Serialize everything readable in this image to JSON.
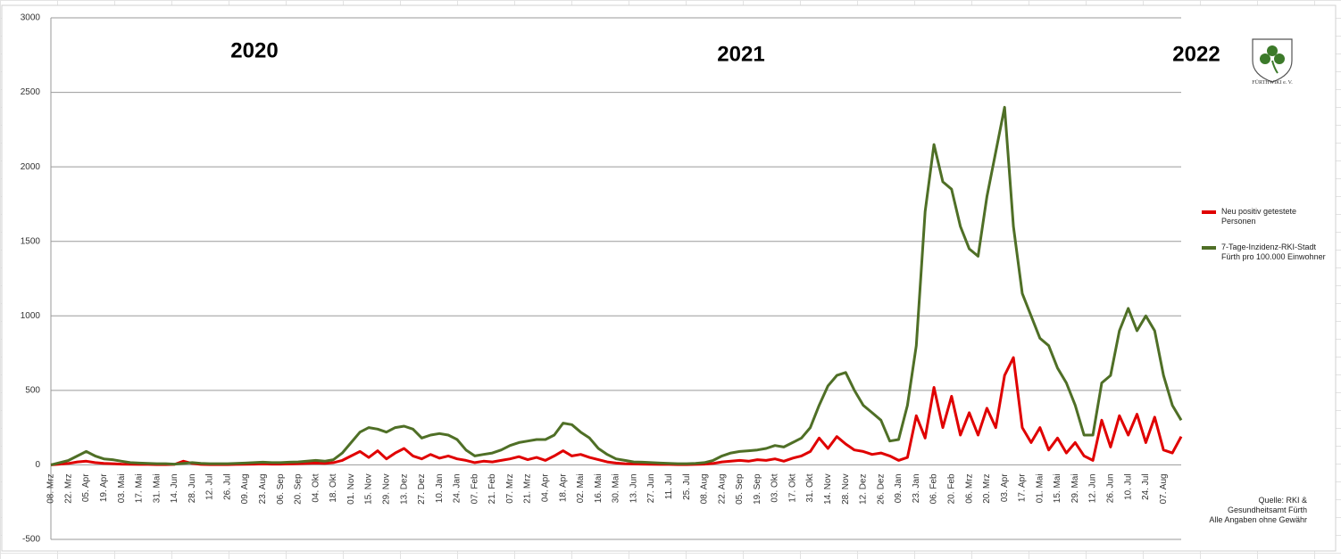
{
  "chart_data": {
    "type": "line",
    "annotations": [
      "2020",
      "2021",
      "2022"
    ],
    "logo_text": "FÜRTHWIKI e. V.",
    "source": [
      "Quelle: RKI &",
      "Gesundheitsamt Fürth",
      "Alle Angaben ohne Gewähr"
    ],
    "categories": [
      "08. Mrz",
      null,
      "22. Mrz",
      null,
      "05. Apr",
      null,
      "19. Apr",
      null,
      "03. Mai",
      null,
      "17. Mai",
      null,
      "31. Mai",
      null,
      "14. Jun",
      null,
      "28. Jun",
      null,
      "12. Jul",
      null,
      "26. Jul",
      null,
      "09. Aug",
      null,
      "23. Aug",
      null,
      "06. Sep",
      null,
      "20. Sep",
      null,
      "04. Okt",
      null,
      "18. Okt",
      null,
      "01. Nov",
      null,
      "15. Nov",
      null,
      "29. Nov",
      null,
      "13. Dez",
      null,
      "27. Dez",
      null,
      "10. Jan",
      null,
      "24. Jan",
      null,
      "07. Feb",
      null,
      "21. Feb",
      null,
      "07. Mrz",
      null,
      "21. Mrz",
      null,
      "04. Apr",
      null,
      "18. Apr",
      null,
      "02. Mai",
      null,
      "16. Mai",
      null,
      "30. Mai",
      null,
      "13. Jun",
      null,
      "27. Jun",
      null,
      "11. Jul",
      null,
      "25. Jul",
      null,
      "08. Aug",
      null,
      "22. Aug",
      null,
      "05. Sep",
      null,
      "19. Sep",
      null,
      "03. Okt",
      null,
      "17. Okt",
      null,
      "31. Okt",
      null,
      "14. Nov",
      null,
      "28. Nov",
      null,
      "12. Dez",
      null,
      "26. Dez",
      null,
      "09. Jan",
      null,
      "23. Jan",
      null,
      "06. Feb",
      null,
      "20. Feb",
      null,
      "06. Mrz",
      null,
      "20. Mrz",
      null,
      "03. Apr",
      null,
      "17. Apr",
      null,
      "01. Mai",
      null,
      "15. Mai",
      null,
      "29. Mai",
      null,
      "12. Jun",
      null,
      "26. Jun",
      null,
      "10. Jul",
      null,
      "24. Jul",
      null,
      "07. Aug",
      null,
      null
    ],
    "series": [
      {
        "name": "Neu positiv getestete Personen",
        "color": "#e00000",
        "values": [
          0,
          5,
          10,
          20,
          25,
          15,
          10,
          8,
          5,
          4,
          3,
          3,
          2,
          2,
          3,
          25,
          10,
          3,
          2,
          2,
          2,
          3,
          4,
          5,
          6,
          5,
          5,
          6,
          8,
          10,
          12,
          10,
          15,
          30,
          60,
          90,
          50,
          95,
          40,
          80,
          110,
          60,
          40,
          70,
          45,
          60,
          40,
          30,
          15,
          25,
          20,
          30,
          40,
          55,
          35,
          50,
          30,
          60,
          95,
          60,
          70,
          50,
          35,
          20,
          12,
          8,
          6,
          5,
          4,
          3,
          3,
          2,
          2,
          3,
          5,
          10,
          20,
          25,
          30,
          25,
          35,
          30,
          40,
          25,
          45,
          60,
          90,
          180,
          110,
          190,
          140,
          100,
          90,
          70,
          80,
          60,
          30,
          50,
          330,
          180,
          520,
          250,
          460,
          200,
          350,
          200,
          380,
          250,
          600,
          720,
          250,
          150,
          250,
          100,
          180,
          80,
          150,
          60,
          30,
          300,
          120,
          330,
          200,
          340,
          150,
          320,
          100,
          80,
          190
        ]
      },
      {
        "name": "7-Tage-Inzidenz-RKI-Stadt Fürth pro 100.000 Einwohner",
        "color": "#4f6f26",
        "values": [
          0,
          15,
          30,
          60,
          90,
          60,
          40,
          35,
          25,
          15,
          12,
          10,
          8,
          8,
          5,
          10,
          15,
          10,
          8,
          8,
          8,
          10,
          12,
          15,
          18,
          15,
          15,
          18,
          20,
          25,
          30,
          25,
          35,
          80,
          150,
          220,
          250,
          240,
          220,
          250,
          260,
          240,
          180,
          200,
          210,
          200,
          170,
          100,
          60,
          70,
          80,
          100,
          130,
          150,
          160,
          170,
          170,
          200,
          280,
          270,
          220,
          180,
          110,
          70,
          40,
          30,
          20,
          18,
          15,
          12,
          10,
          8,
          8,
          10,
          15,
          30,
          60,
          80,
          90,
          95,
          100,
          110,
          130,
          120,
          150,
          180,
          250,
          400,
          530,
          600,
          620,
          500,
          400,
          350,
          300,
          160,
          170,
          400,
          800,
          1700,
          2150,
          1900,
          1850,
          1600,
          1450,
          1400,
          1800,
          2100,
          2400,
          1600,
          1150,
          1000,
          850,
          800,
          650,
          550,
          400,
          200,
          200,
          550,
          600,
          900,
          1050,
          900,
          1000,
          900,
          600,
          400,
          300
        ]
      }
    ],
    "ylim": [
      -500,
      3000
    ],
    "yticks": [
      -500,
      0,
      500,
      1000,
      1500,
      2000,
      2500,
      3000
    ],
    "grid": true
  }
}
